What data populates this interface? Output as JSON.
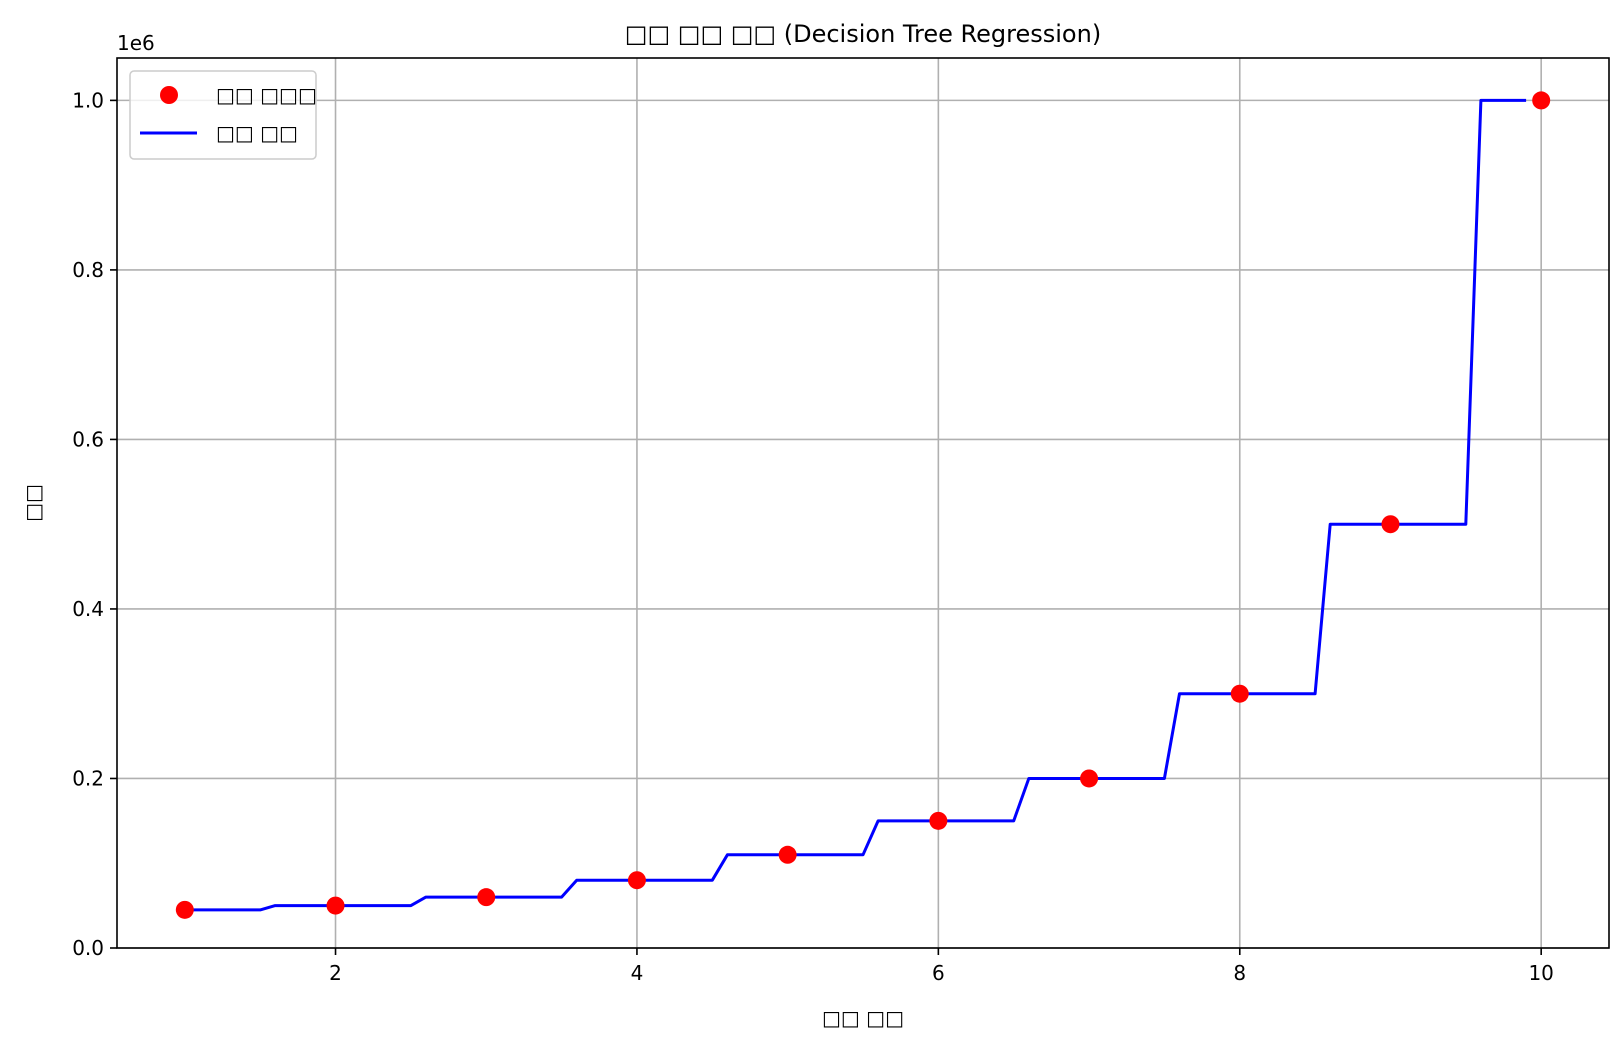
{
  "chart_data": {
    "type": "line",
    "title": "□□ □□ □□ (Decision Tree Regression)",
    "xlabel": "□□ □□",
    "ylabel": "□□",
    "y_offset_label": "1e6",
    "xlim": [
      0.55,
      10.45
    ],
    "ylim": [
      0,
      1.05
    ],
    "x_ticks": [
      2,
      4,
      6,
      8,
      10
    ],
    "x_tick_labels": [
      "2",
      "4",
      "6",
      "8",
      "10"
    ],
    "y_ticks": [
      0.0,
      0.2,
      0.4,
      0.6,
      0.8,
      1.0
    ],
    "y_tick_labels": [
      "0.0",
      "0.2",
      "0.4",
      "0.6",
      "0.8",
      "1.0"
    ],
    "grid": true,
    "legend_position": "top-left",
    "series": [
      {
        "name": "□□ □□□",
        "kind": "scatter",
        "color": "#ff0000",
        "x": [
          1,
          2,
          3,
          4,
          5,
          6,
          7,
          8,
          9,
          10
        ],
        "y": [
          0.045,
          0.05,
          0.06,
          0.08,
          0.11,
          0.15,
          0.2,
          0.3,
          0.5,
          1.0
        ]
      },
      {
        "name": "□□ □□",
        "kind": "line",
        "color": "#0000ff",
        "x": [
          1.0,
          1.5,
          1.6,
          2.5,
          2.6,
          3.5,
          3.6,
          4.5,
          4.6,
          5.5,
          5.6,
          6.5,
          6.6,
          7.5,
          7.6,
          8.5,
          8.6,
          9.5,
          9.6,
          9.9
        ],
        "y": [
          0.045,
          0.045,
          0.05,
          0.05,
          0.06,
          0.06,
          0.08,
          0.08,
          0.11,
          0.11,
          0.15,
          0.15,
          0.2,
          0.2,
          0.3,
          0.3,
          0.5,
          0.5,
          1.0,
          1.0
        ]
      }
    ]
  }
}
